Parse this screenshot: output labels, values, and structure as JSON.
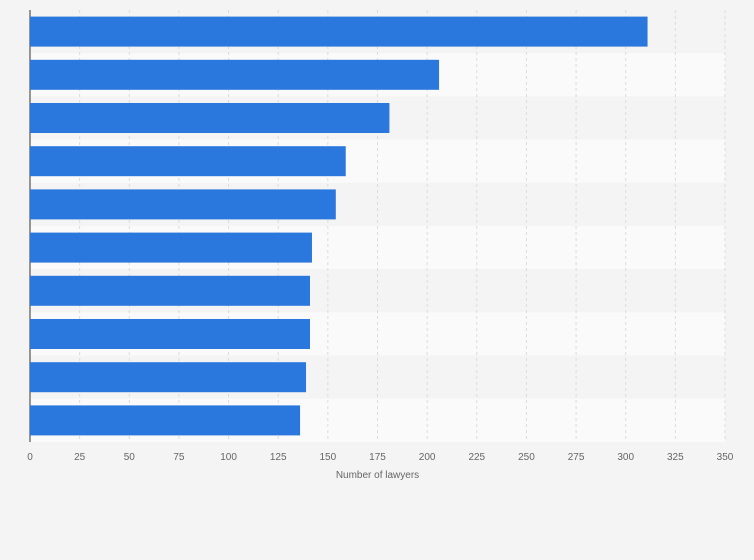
{
  "chart_data": {
    "type": "bar",
    "orientation": "horizontal",
    "title": "",
    "xlabel": "Number of lawyers",
    "ylabel": "",
    "categories": [
      "",
      "",
      "",
      "",
      "",
      "",
      "",
      "",
      "",
      ""
    ],
    "values": [
      311,
      206,
      181,
      159,
      154,
      142,
      141,
      141,
      139,
      136
    ],
    "xlim": [
      0,
      350
    ],
    "xticks": [
      "0",
      "25",
      "50",
      "75",
      "100",
      "125",
      "150",
      "175",
      "200",
      "225",
      "250",
      "275",
      "300",
      "325",
      "350"
    ],
    "grid": true,
    "legend": "none",
    "bar_color": "#2a77dd"
  }
}
